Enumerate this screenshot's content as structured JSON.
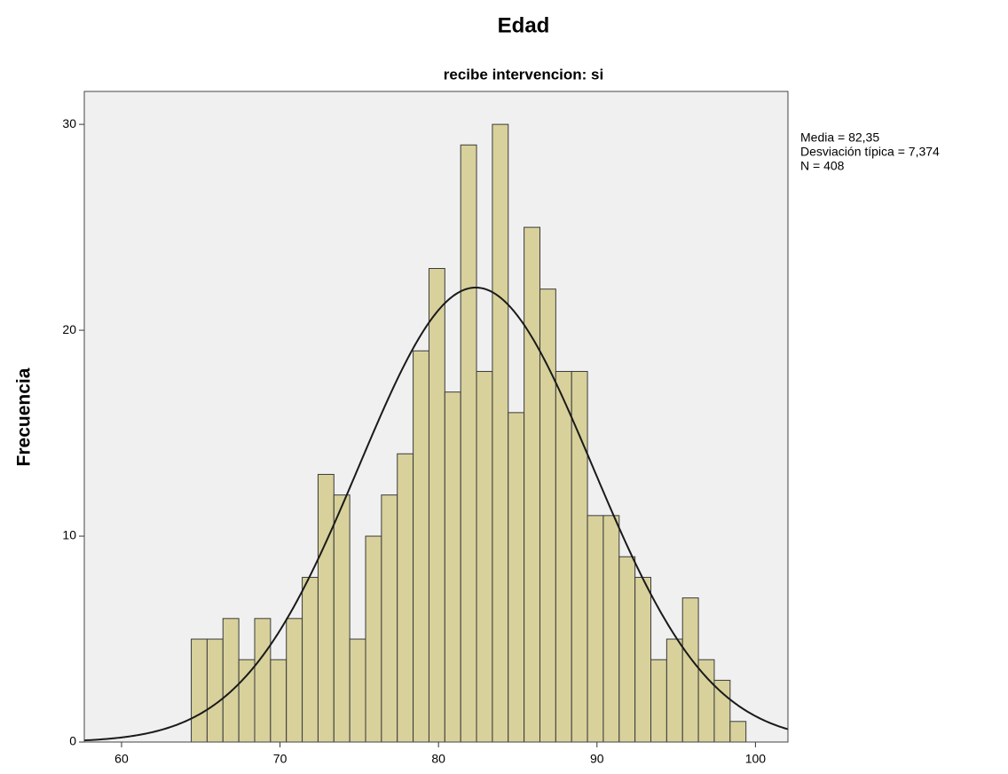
{
  "chart_data": {
    "type": "histogram",
    "title": "Edad",
    "subtitle": "recibe intervencion: si",
    "y_label": "Frecuencia",
    "bins": [
      64.4,
      65.4,
      66.4,
      67.4,
      68.4,
      69.4,
      70.4,
      71.4,
      72.4,
      73.4,
      74.4,
      75.4,
      76.4,
      77.4,
      78.4,
      79.4,
      80.4,
      81.4,
      82.4,
      83.4,
      84.4,
      85.4,
      86.4,
      87.4,
      88.4,
      89.4,
      90.4,
      91.4,
      92.4,
      93.4,
      94.4,
      95.4,
      96.4,
      97.4,
      98.4,
      99.4
    ],
    "values": [
      5,
      5,
      6,
      4,
      6,
      4,
      6,
      8,
      13,
      12,
      5,
      10,
      12,
      14,
      19,
      23,
      17,
      29,
      18,
      30,
      16,
      25,
      22,
      18,
      18,
      11,
      11,
      9,
      8,
      4,
      5,
      7,
      4,
      3,
      1
    ],
    "color": "#d8d19c",
    "xlim": [
      57.65,
      102.05
    ],
    "ylim": [
      0,
      31.6
    ],
    "xticks": [
      60,
      70,
      80,
      90,
      100
    ],
    "yticks": [
      0,
      10,
      20,
      30
    ],
    "stats": [
      {
        "value": 82.35,
        "label": "Media = 82,35"
      },
      {
        "value": 7.374,
        "label": "Desviación típica = 7,374"
      },
      {
        "value": 408,
        "label": "N = 408"
      }
    ],
    "normal_curve": true
  }
}
